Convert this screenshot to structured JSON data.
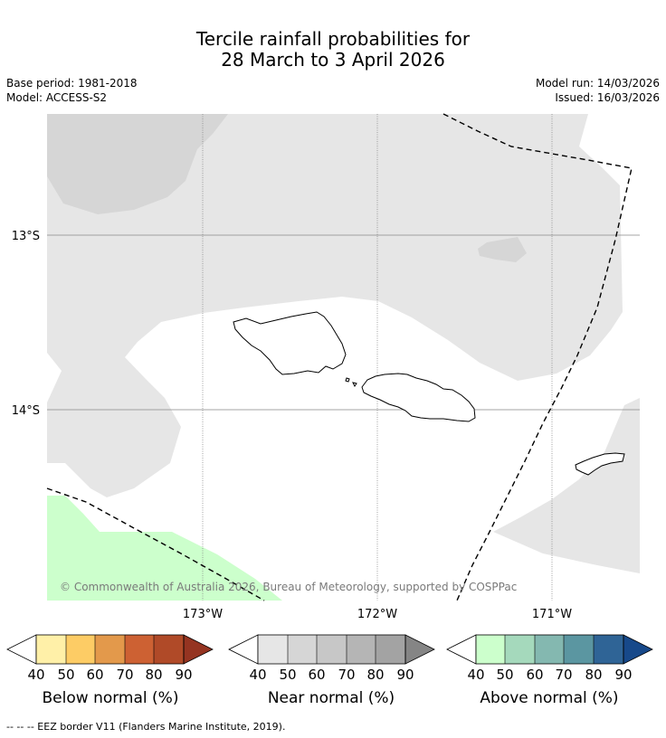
{
  "title": {
    "line1": "Tercile rainfall probabilities for",
    "line2": "28 March to 3 April 2026"
  },
  "meta": {
    "base_period": "Base period: 1981-2018",
    "model": "Model: ACCESS-S2",
    "model_run": "Model run: 14/03/2026",
    "issued": "Issued: 16/03/2026"
  },
  "map": {
    "lat_labels": [
      "13°S",
      "14°S"
    ],
    "lon_labels": [
      "173°W",
      "172°W",
      "171°W"
    ],
    "copyright": "© Commonwealth of Australia 2026, Bureau of Meteorology, supported by COSPPac",
    "colors": {
      "near_normal_40": "#e6e6e6",
      "near_normal_50": "#d6d6d6",
      "above_normal_40": "#ccffcc",
      "land_outline": "#000000",
      "eez_border": "#000000",
      "grid": "#888888"
    }
  },
  "colorbars": {
    "below": {
      "title": "Below normal (%)",
      "ticks": [
        "40",
        "50",
        "60",
        "70",
        "80",
        "90"
      ],
      "colors": [
        "#fff0a8",
        "#fdcc65",
        "#e3994b",
        "#cd6133",
        "#b04a28",
        "#953421"
      ]
    },
    "near": {
      "title": "Near normal (%)",
      "ticks": [
        "40",
        "50",
        "60",
        "70",
        "80",
        "90"
      ],
      "colors": [
        "#e6e6e6",
        "#d6d6d6",
        "#c7c7c7",
        "#b5b5b5",
        "#a3a3a3",
        "#858585"
      ]
    },
    "above": {
      "title": "Above normal (%)",
      "ticks": [
        "40",
        "50",
        "60",
        "70",
        "80",
        "90"
      ],
      "colors": [
        "#ccffcc",
        "#a5d9bc",
        "#84b8b0",
        "#5b96a1",
        "#2f6496",
        "#17498a"
      ]
    }
  },
  "footnote": "-- -- -- EEZ border V11 (Flanders Marine Institute, 2019)."
}
